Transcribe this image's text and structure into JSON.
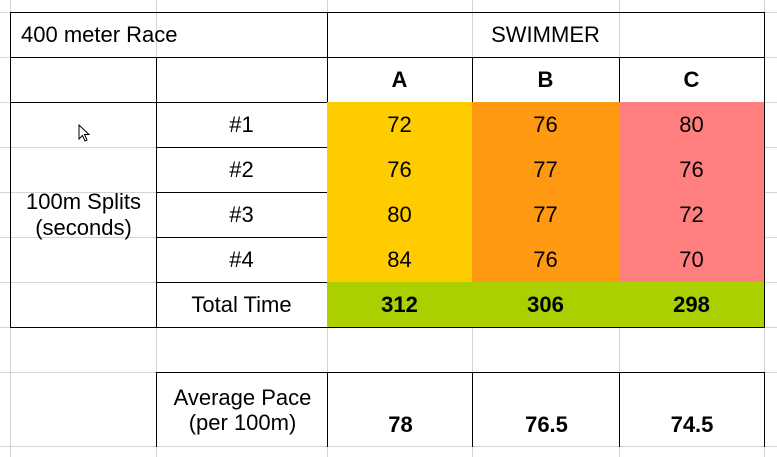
{
  "header": {
    "race_title": "400 meter Race",
    "swimmer_label": "SWIMMER"
  },
  "swimmers": [
    "A",
    "B",
    "C"
  ],
  "splits": {
    "label_line1": "100m Splits",
    "label_line2": "(seconds)",
    "rows": [
      {
        "label": "#1",
        "values": [
          "72",
          "76",
          "80"
        ]
      },
      {
        "label": "#2",
        "values": [
          "76",
          "77",
          "76"
        ]
      },
      {
        "label": "#3",
        "values": [
          "80",
          "77",
          "72"
        ]
      },
      {
        "label": "#4",
        "values": [
          "84",
          "76",
          "70"
        ]
      }
    ]
  },
  "total": {
    "label": "Total Time",
    "values": [
      "312",
      "306",
      "298"
    ]
  },
  "average": {
    "label_line1": "Average Pace",
    "label_line2": "(per 100m)",
    "values": [
      "78",
      "76.5",
      "74.5"
    ]
  },
  "colors": {
    "swimmer_a": "#ffcc00",
    "swimmer_b": "#ff9912",
    "swimmer_c": "#ff7f7f",
    "total_row": "#aad000",
    "gridline": "#d4d4d4"
  }
}
